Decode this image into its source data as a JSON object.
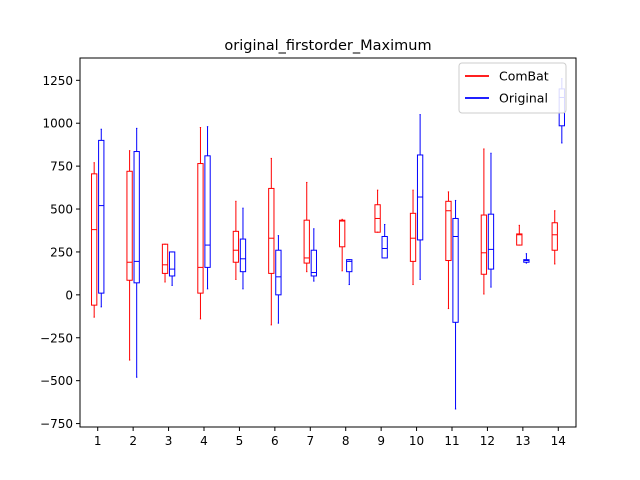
{
  "chart_data": {
    "type": "boxplot",
    "title": "original_firstorder_Maximum",
    "xlabel": "",
    "ylabel": "",
    "categories": [
      "1",
      "2",
      "3",
      "4",
      "5",
      "6",
      "7",
      "8",
      "9",
      "10",
      "11",
      "12",
      "13",
      "14"
    ],
    "ylim": [
      -770,
      1380
    ],
    "yticks": [
      -750,
      -500,
      -250,
      0,
      250,
      500,
      750,
      1000,
      1250
    ],
    "grid": false,
    "legend_position": "top-right",
    "series": [
      {
        "name": "ComBat",
        "color": "#ff0000",
        "boxes": [
          {
            "whislo": -130,
            "q1": -60,
            "med": 380,
            "q3": 705,
            "whishi": 770
          },
          {
            "whislo": -380,
            "q1": 85,
            "med": 190,
            "q3": 720,
            "whishi": 840
          },
          {
            "whislo": 75,
            "q1": 125,
            "med": 175,
            "q3": 295,
            "whishi": 295
          },
          {
            "whislo": -140,
            "q1": 10,
            "med": 160,
            "q3": 765,
            "whishi": 975
          },
          {
            "whislo": 90,
            "q1": 190,
            "med": 260,
            "q3": 370,
            "whishi": 545
          },
          {
            "whislo": -175,
            "q1": 125,
            "med": 330,
            "q3": 620,
            "whishi": 795
          },
          {
            "whislo": 135,
            "q1": 185,
            "med": 215,
            "q3": 435,
            "whishi": 655
          },
          {
            "whislo": 140,
            "q1": 280,
            "med": 430,
            "q3": 435,
            "whishi": 440
          },
          {
            "whislo": 365,
            "q1": 365,
            "med": 445,
            "q3": 525,
            "whishi": 610
          },
          {
            "whislo": 60,
            "q1": 195,
            "med": 330,
            "q3": 475,
            "whishi": 610
          },
          {
            "whislo": -80,
            "q1": 200,
            "med": 490,
            "q3": 545,
            "whishi": 600
          },
          {
            "whislo": 5,
            "q1": 120,
            "med": 245,
            "q3": 465,
            "whishi": 850
          },
          {
            "whislo": 290,
            "q1": 290,
            "med": 350,
            "q3": 355,
            "whishi": 405
          },
          {
            "whislo": 180,
            "q1": 260,
            "med": 350,
            "q3": 420,
            "whishi": 490
          }
        ]
      },
      {
        "name": "Original",
        "color": "#0000ff",
        "boxes": [
          {
            "whislo": -70,
            "q1": 10,
            "med": 520,
            "q3": 900,
            "whishi": 965
          },
          {
            "whislo": -480,
            "q1": 70,
            "med": 195,
            "q3": 835,
            "whishi": 970
          },
          {
            "whislo": 55,
            "q1": 110,
            "med": 150,
            "q3": 250,
            "whishi": 250
          },
          {
            "whislo": 35,
            "q1": 160,
            "med": 290,
            "q3": 810,
            "whishi": 980
          },
          {
            "whislo": 35,
            "q1": 135,
            "med": 210,
            "q3": 325,
            "whishi": 505
          },
          {
            "whislo": -165,
            "q1": 0,
            "med": 105,
            "q3": 260,
            "whishi": 345
          },
          {
            "whislo": 80,
            "q1": 110,
            "med": 130,
            "q3": 260,
            "whishi": 385
          },
          {
            "whislo": 60,
            "q1": 135,
            "med": 195,
            "q3": 205,
            "whishi": 205
          },
          {
            "whislo": 215,
            "q1": 215,
            "med": 270,
            "q3": 340,
            "whishi": 410
          },
          {
            "whislo": 90,
            "q1": 320,
            "med": 570,
            "q3": 815,
            "whishi": 1050
          },
          {
            "whislo": -665,
            "q1": -160,
            "med": 340,
            "q3": 445,
            "whishi": 550
          },
          {
            "whislo": 45,
            "q1": 150,
            "med": 265,
            "q3": 470,
            "whishi": 825
          },
          {
            "whislo": 185,
            "q1": 190,
            "med": 200,
            "q3": 205,
            "whishi": 240
          },
          {
            "whislo": 885,
            "q1": 985,
            "med": 1150,
            "q3": 1200,
            "whishi": 1260
          }
        ]
      }
    ]
  }
}
